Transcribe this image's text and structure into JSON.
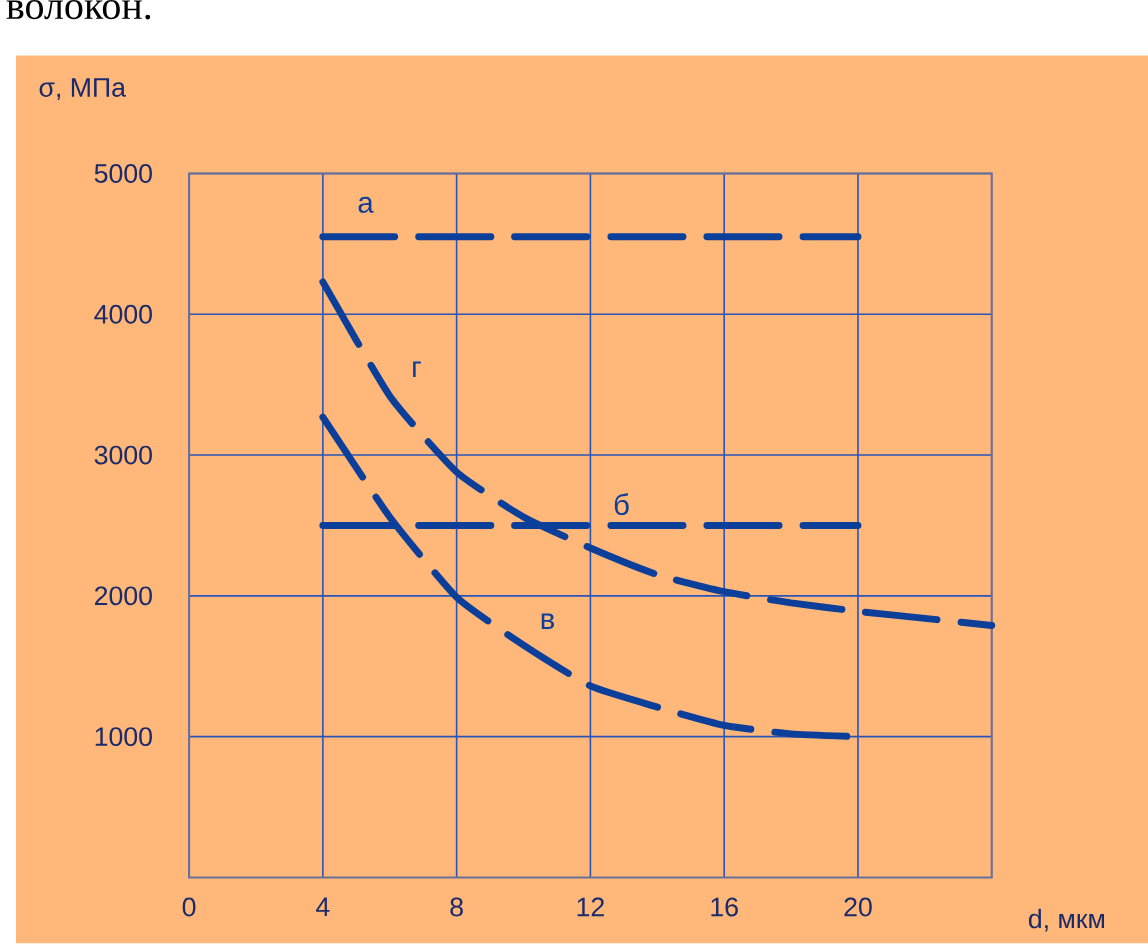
{
  "chart_data": {
    "type": "line",
    "xlabel": "d, мкм",
    "ylabel": "σ, МПа",
    "annotations": [
      "волокон."
    ],
    "xlim": [
      0,
      24
    ],
    "ylim": [
      0,
      5000
    ],
    "xticks": [
      0,
      4,
      8,
      12,
      16,
      20
    ],
    "yticks": [
      1000,
      2000,
      3000,
      4000,
      5000
    ],
    "grid": true,
    "line_style": "dashed",
    "series": [
      {
        "name": "а",
        "color": "#0b3f9a",
        "x": [
          4,
          20
        ],
        "values": [
          4550,
          4550
        ]
      },
      {
        "name": "б",
        "color": "#0b3f9a",
        "x": [
          4,
          20
        ],
        "values": [
          2500,
          2500
        ]
      },
      {
        "name": "г",
        "color": "#0b3f9a",
        "x": [
          4,
          6,
          8,
          10,
          12,
          14,
          16,
          18,
          20,
          22,
          24
        ],
        "values": [
          4230,
          3420,
          2880,
          2560,
          2340,
          2150,
          2030,
          1950,
          1890,
          1840,
          1790
        ]
      },
      {
        "name": "в",
        "color": "#0b3f9a",
        "x": [
          4,
          6,
          8,
          10,
          12,
          14,
          16,
          18,
          20
        ],
        "values": [
          3270,
          2560,
          1990,
          1650,
          1360,
          1210,
          1080,
          1020,
          1000
        ]
      }
    ]
  }
}
